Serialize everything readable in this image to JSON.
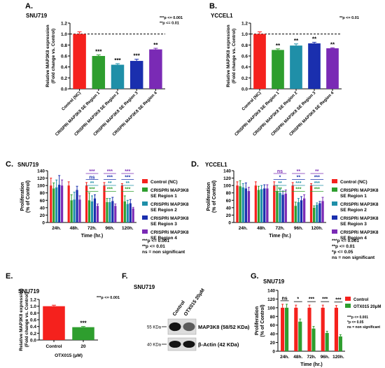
{
  "colors": {
    "red": "#f5211d",
    "green": "#2e9e2e",
    "teal": "#1f8fa8",
    "blue": "#1a2fae",
    "purple": "#7a2ab5",
    "gray": "#444444"
  },
  "chart_data": [
    {
      "panel": "A.",
      "type": "bar",
      "title": "SNU719",
      "ylabel_lines": [
        "Relative MAP3K8 expression",
        "(Fold change vs. Control)"
      ],
      "categories": [
        "Control (NC)",
        "CRISPRi MAP3K8 SE Region 1",
        "CRISPRi MAP3K8 SE Region 2",
        "CRISPRi MAP3K8 SE Region 3",
        "CRISPRi MAP3K8 SE Region 4"
      ],
      "values": [
        1.0,
        0.6,
        0.44,
        0.51,
        0.72
      ],
      "errors": [
        0.04,
        0.02,
        0.02,
        0.03,
        0.02
      ],
      "colors": [
        "#f5211d",
        "#2e9e2e",
        "#1f8fa8",
        "#1a2fae",
        "#7a2ab5"
      ],
      "sig": [
        "",
        "***",
        "***",
        "***",
        "**"
      ],
      "ylim": [
        0,
        1.2
      ],
      "yticks": [
        "0.0",
        "0.2",
        "0.4",
        "0.6",
        "0.8",
        "1.0",
        "1.2"
      ],
      "refline": 1.0,
      "legend_lines": [
        "***p <= 0.001",
        "**p <= 0.01"
      ]
    },
    {
      "panel": "B.",
      "type": "bar",
      "title": "YCCEL1",
      "ylabel_lines": [
        "Relative MAP3K8 expression",
        "(Fold change vs. Control)"
      ],
      "categories": [
        "Control (NC)",
        "CRISPRi MAP3K8 SE Region 1",
        "CRISPRi MAP3K8 SE Region 2",
        "CRISPRi MAP3K8 SE Region 3",
        "CRISPRi MAP3K8 SE Region 4"
      ],
      "values": [
        1.0,
        0.71,
        0.79,
        0.83,
        0.74
      ],
      "errors": [
        0.04,
        0.02,
        0.03,
        0.02,
        0.01
      ],
      "colors": [
        "#f5211d",
        "#2e9e2e",
        "#1f8fa8",
        "#1a2fae",
        "#7a2ab5"
      ],
      "sig": [
        "",
        "**",
        "**",
        "**",
        "**"
      ],
      "ylim": [
        0,
        1.2
      ],
      "yticks": [
        "0.0",
        "0.2",
        "0.4",
        "0.6",
        "0.8",
        "1.0",
        "1.2"
      ],
      "refline": 1.0,
      "legend_lines": [
        "**p <= 0.01"
      ]
    },
    {
      "panel": "C.",
      "type": "bar",
      "title": "SNU719",
      "ylabel_lines": [
        "Proliferation",
        "(% of Control)"
      ],
      "xlabel": "Time (hr.)",
      "categories": [
        "24h.",
        "48h.",
        "72h.",
        "96h.",
        "120h."
      ],
      "ylim": [
        0,
        140
      ],
      "yticks": [
        "0",
        "20",
        "40",
        "60",
        "80",
        "100",
        "120",
        "140"
      ],
      "series": [
        {
          "name": "Control (NC)",
          "color": "#f5211d",
          "values": [
            100,
            100,
            100,
            100,
            100
          ],
          "errors": [
            20,
            10,
            8,
            8,
            5
          ]
        },
        {
          "name": "CRISPRi MAP3K8 SE Region 1",
          "color": "#2e9e2e",
          "values": [
            92,
            60,
            60,
            55,
            57
          ],
          "errors": [
            15,
            15,
            20,
            10,
            15
          ]
        },
        {
          "name": "CRISPRi MAP3K8 SE Region 2",
          "color": "#1f8fa8",
          "values": [
            95,
            62,
            57,
            55,
            50
          ],
          "errors": [
            20,
            20,
            15,
            10,
            10
          ]
        },
        {
          "name": "CRISPRi MAP3K8 SE Region 3",
          "color": "#1a2fae",
          "values": [
            102,
            88,
            65,
            58,
            52
          ],
          "errors": [
            25,
            10,
            10,
            10,
            10
          ]
        },
        {
          "name": "CRISPRi MAP3K8 SE Region 4",
          "color": "#7a2ab5",
          "values": [
            100,
            62,
            45,
            45,
            38
          ],
          "errors": [
            15,
            10,
            5,
            5,
            3
          ]
        }
      ],
      "sig_rows": [
        {
          "color": "#7a2ab5",
          "labels": [
            "",
            "",
            "***",
            "***",
            "***"
          ]
        },
        {
          "color": "#1a2fae",
          "labels": [
            "",
            "",
            "ns",
            "***",
            "***"
          ]
        },
        {
          "color": "#1f8fa8",
          "labels": [
            "",
            "",
            "**",
            "**",
            "**"
          ]
        },
        {
          "color": "#2e9e2e",
          "labels": [
            "",
            "",
            "***",
            "***",
            "***"
          ]
        }
      ],
      "legend": [
        {
          "color": "#f5211d",
          "lines": [
            "Control (NC)"
          ]
        },
        {
          "color": "#2e9e2e",
          "lines": [
            "CRISPRi MAP3K8",
            "SE Region 1"
          ]
        },
        {
          "color": "#1f8fa8",
          "lines": [
            "CRISPRi MAP3K8",
            "SE Region 2"
          ]
        },
        {
          "color": "#1a2fae",
          "lines": [
            "CRISPRi MAP3K8",
            "SE Region 3"
          ]
        },
        {
          "color": "#7a2ab5",
          "lines": [
            "CRISPRi MAP3K8",
            "SE Region 4"
          ]
        }
      ],
      "notes": [
        "***p <= 0.001",
        "**p <= 0.01",
        "ns = non significant"
      ]
    },
    {
      "panel": "D.",
      "type": "bar",
      "title": "YCCEL1",
      "ylabel_lines": [
        "Proliferation",
        "(% of Control)"
      ],
      "xlabel": "Time (hr.)",
      "categories": [
        "24h.",
        "48h.",
        "72h.",
        "96h.",
        "120h."
      ],
      "ylim": [
        0,
        140
      ],
      "yticks": [
        "0",
        "20",
        "40",
        "60",
        "80",
        "100",
        "120",
        "140"
      ],
      "series": [
        {
          "name": "Control (NC)",
          "color": "#f5211d",
          "values": [
            100,
            100,
            100,
            100,
            100
          ],
          "errors": [
            10,
            10,
            10,
            8,
            5
          ]
        },
        {
          "name": "CRISPRi MAP3K8 SE Region 1",
          "color": "#2e9e2e",
          "values": [
            98,
            88,
            85,
            45,
            40
          ],
          "errors": [
            15,
            10,
            15,
            10,
            5
          ]
        },
        {
          "name": "CRISPRi MAP3K8 SE Region 2",
          "color": "#1f8fa8",
          "values": [
            95,
            90,
            80,
            55,
            48
          ],
          "errors": [
            10,
            10,
            10,
            10,
            5
          ]
        },
        {
          "name": "CRISPRi MAP3K8 SE Region 3",
          "color": "#1a2fae",
          "values": [
            92,
            92,
            75,
            60,
            52
          ],
          "errors": [
            15,
            10,
            10,
            10,
            5
          ]
        },
        {
          "name": "CRISPRi MAP3K8 SE Region 4",
          "color": "#7a2ab5",
          "values": [
            85,
            92,
            78,
            65,
            58
          ],
          "errors": [
            10,
            10,
            10,
            10,
            10
          ]
        }
      ],
      "sig_rows": [
        {
          "color": "#7a2ab5",
          "labels": [
            "",
            "",
            "ns",
            "**",
            "**"
          ]
        },
        {
          "color": "#1a2fae",
          "labels": [
            "",
            "",
            "*",
            "**",
            "***"
          ]
        },
        {
          "color": "#1f8fa8",
          "labels": [
            "",
            "",
            "**",
            "***",
            "***"
          ]
        },
        {
          "color": "#2e9e2e",
          "labels": [
            "",
            "",
            "**",
            "***",
            "***"
          ]
        }
      ],
      "legend": [
        {
          "color": "#f5211d",
          "lines": [
            "Control (NC)"
          ]
        },
        {
          "color": "#2e9e2e",
          "lines": [
            "CRISPRi MAP3K8",
            "SE Region 1"
          ]
        },
        {
          "color": "#1f8fa8",
          "lines": [
            "CRISPRi MAP3K8",
            "SE Region 2"
          ]
        },
        {
          "color": "#1a2fae",
          "lines": [
            "CRISPRi MAP3K8",
            "SE Region 3"
          ]
        },
        {
          "color": "#7a2ab5",
          "lines": [
            "CRISPRi MAP3K8",
            "SE Region 4"
          ]
        }
      ],
      "notes": [
        "***p <= 0.001",
        "**p <= 0.01",
        "*p <= 0.05",
        "ns = non significant"
      ]
    },
    {
      "panel": "E.",
      "type": "bar",
      "title": "SNU719",
      "ylabel_lines": [
        "Relative MAP3K8 expression",
        "(Fold change vs. Control)"
      ],
      "categories": [
        "Control",
        "20"
      ],
      "xlabel": "OTX015 (μM)",
      "values": [
        1.0,
        0.38
      ],
      "errors": [
        0.03,
        0.02
      ],
      "colors": [
        "#f5211d",
        "#2e9e2e"
      ],
      "sig": [
        "",
        "***"
      ],
      "ylim": [
        0,
        1.2
      ],
      "yticks": [
        "0.0",
        "0.2",
        "0.4",
        "0.6",
        "0.8",
        "1.0",
        "1.2"
      ],
      "legend_lines": [
        "***p <= 0.001"
      ]
    },
    {
      "panel": "G.",
      "type": "bar",
      "title": "SNU719",
      "ylabel_lines": [
        "Proliferation",
        "(% of Control)"
      ],
      "xlabel": "Time (hr.)",
      "categories": [
        "24h.",
        "48h.",
        "72h.",
        "96h.",
        "120h."
      ],
      "ylim": [
        0,
        140
      ],
      "yticks": [
        "0",
        "20",
        "40",
        "60",
        "80",
        "100",
        "120",
        "140"
      ],
      "series": [
        {
          "name": "Control",
          "color": "#f5211d",
          "values": [
            100,
            100,
            100,
            100,
            100
          ],
          "errors": [
            8,
            6,
            6,
            6,
            5
          ]
        },
        {
          "name": "OTX015 20μM",
          "color": "#2e9e2e",
          "values": [
            100,
            68,
            52,
            42,
            34
          ],
          "errors": [
            8,
            6,
            5,
            4,
            4
          ]
        }
      ],
      "sig": [
        "ns",
        "*",
        "***",
        "***",
        "***"
      ],
      "legend": [
        {
          "color": "#f5211d",
          "lines": [
            "Control"
          ]
        },
        {
          "color": "#2e9e2e",
          "lines": [
            "OTX015 20μM"
          ]
        }
      ],
      "notes": [
        "***p <= 0.001",
        "*p <= 0.05",
        "ns = non significant"
      ]
    }
  ],
  "blot": {
    "panel": "F.",
    "title": "SNU719",
    "lanes": [
      "Control",
      "OTX015 20μM"
    ],
    "bands": [
      {
        "marker": "55 KDa",
        "label": "MAP3K8 (58/52 KDa)",
        "intensity": [
          1.0,
          0.55
        ]
      },
      {
        "marker": "40 KDa",
        "label": "β-Actin  (42 KDa)",
        "intensity": [
          1.0,
          1.0
        ]
      }
    ]
  }
}
